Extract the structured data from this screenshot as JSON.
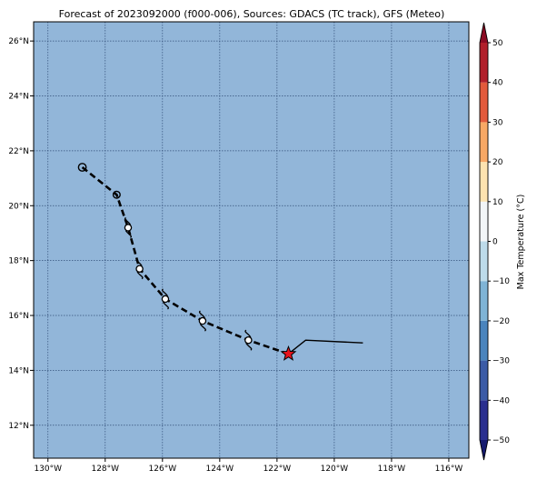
{
  "title": "Forecast of 2023092000 (f000-006), Sources: GDACS (TC track), GFS (Meteo)",
  "map": {
    "lon_range": [
      -130.5,
      -115.3
    ],
    "lat_range": [
      10.8,
      26.7
    ],
    "x_ticks": [
      {
        "value": -130,
        "label": "130°W"
      },
      {
        "value": -128,
        "label": "128°W"
      },
      {
        "value": -126,
        "label": "126°W"
      },
      {
        "value": -124,
        "label": "124°W"
      },
      {
        "value": -122,
        "label": "122°W"
      },
      {
        "value": -120,
        "label": "120°W"
      },
      {
        "value": -118,
        "label": "118°W"
      },
      {
        "value": -116,
        "label": "116°W"
      }
    ],
    "y_ticks": [
      {
        "value": 12,
        "label": "12°N"
      },
      {
        "value": 14,
        "label": "14°N"
      },
      {
        "value": 16,
        "label": "16°N"
      },
      {
        "value": 18,
        "label": "18°N"
      },
      {
        "value": 20,
        "label": "20°N"
      },
      {
        "value": 22,
        "label": "22°N"
      },
      {
        "value": 24,
        "label": "24°N"
      },
      {
        "value": 26,
        "label": "26°N"
      }
    ],
    "grid": true,
    "ocean_color": "#92b6d9",
    "grid_color": "#33507a"
  },
  "track": {
    "forecast_points": [
      {
        "lon": -128.8,
        "lat": 21.4,
        "symbol": "circle-open"
      },
      {
        "lon": -127.6,
        "lat": 20.4,
        "symbol": "circle-dot"
      },
      {
        "lon": -127.2,
        "lat": 19.2,
        "symbol": "cyclone"
      },
      {
        "lon": -126.8,
        "lat": 17.7,
        "symbol": "cyclone"
      },
      {
        "lon": -125.9,
        "lat": 16.6,
        "symbol": "cyclone"
      },
      {
        "lon": -124.6,
        "lat": 15.8,
        "symbol": "cyclone"
      },
      {
        "lon": -123.0,
        "lat": 15.1,
        "symbol": "cyclone"
      }
    ],
    "current_position": {
      "lon": -121.6,
      "lat": 14.6,
      "symbol": "star",
      "color": "#e8141c"
    },
    "past_track": [
      {
        "lon": -121.6,
        "lat": 14.6
      },
      {
        "lon": -121.0,
        "lat": 15.1
      },
      {
        "lon": -119.0,
        "lat": 15.0
      }
    ]
  },
  "colorbar": {
    "label": "Max Temperature (°C)",
    "ticks": [
      {
        "value": 50,
        "label": "50"
      },
      {
        "value": 40,
        "label": "40"
      },
      {
        "value": 30,
        "label": "30"
      },
      {
        "value": 20,
        "label": "20"
      },
      {
        "value": 10,
        "label": "10"
      },
      {
        "value": 0,
        "label": "0"
      },
      {
        "value": -10,
        "label": "−10"
      },
      {
        "value": -20,
        "label": "−20"
      },
      {
        "value": -30,
        "label": "−30"
      },
      {
        "value": -40,
        "label": "−40"
      },
      {
        "value": -50,
        "label": "−50"
      }
    ],
    "range": [
      -50,
      50
    ],
    "bands": [
      {
        "from": -50,
        "to": -40,
        "color": "#2a2f8f"
      },
      {
        "from": -40,
        "to": -30,
        "color": "#3b5ba6"
      },
      {
        "from": -30,
        "to": -20,
        "color": "#4a84bd"
      },
      {
        "from": -20,
        "to": -10,
        "color": "#7fb4d6"
      },
      {
        "from": -10,
        "to": 0,
        "color": "#bddbea"
      },
      {
        "from": 0,
        "to": 10,
        "color": "#f2f5f7"
      },
      {
        "from": 10,
        "to": 20,
        "color": "#fde3b0"
      },
      {
        "from": 20,
        "to": 30,
        "color": "#f8a865"
      },
      {
        "from": 30,
        "to": 40,
        "color": "#e25a3c"
      },
      {
        "from": 40,
        "to": 50,
        "color": "#b11f2b"
      }
    ],
    "low_extend_color": "#151a6e",
    "high_extend_color": "#8b0b23"
  }
}
